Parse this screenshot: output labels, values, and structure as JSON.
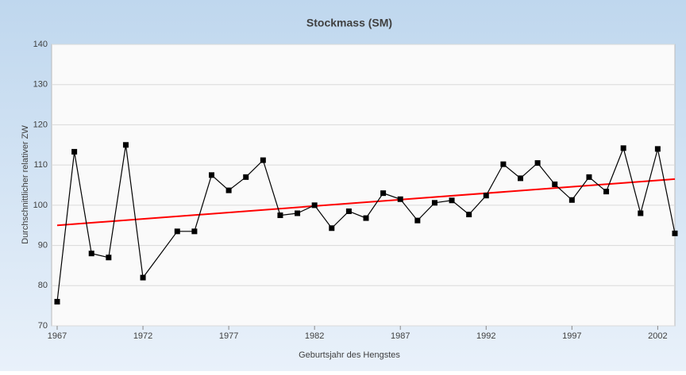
{
  "chart_data": {
    "type": "line",
    "title": "Stockmass (SM)",
    "xlabel": "Geburtsjahr des Hengstes",
    "ylabel": "Durchschnittlicher relativer ZW",
    "x": [
      1967,
      1968,
      1969,
      1970,
      1971,
      1972,
      1974,
      1975,
      1976,
      1977,
      1978,
      1979,
      1980,
      1981,
      1982,
      1983,
      1984,
      1985,
      1986,
      1987,
      1988,
      1989,
      1990,
      1991,
      1992,
      1993,
      1994,
      1995,
      1996,
      1997,
      1998,
      1999,
      2000,
      2001,
      2002,
      2003
    ],
    "series": [
      {
        "color": "#000000",
        "values": [
          76,
          113.3,
          88,
          87,
          115,
          82,
          93.5,
          93.5,
          107.5,
          103.7,
          107,
          111.2,
          97.5,
          98,
          100,
          94.3,
          98.5,
          96.8,
          103,
          101.5,
          96.2,
          100.6,
          101.2,
          97.7,
          102.4,
          110.2,
          106.7,
          110.5,
          105.2,
          101.3,
          107,
          103.4,
          114.2,
          98,
          114,
          93
        ]
      }
    ],
    "trendline": {
      "color": "#ff0000",
      "x": [
        1967,
        2003
      ],
      "values": [
        95,
        106.5
      ]
    },
    "xlim": [
      1967,
      2003
    ],
    "xticks": [
      1967,
      1972,
      1977,
      1982,
      1987,
      1992,
      1997,
      2002
    ],
    "ylim": [
      70,
      140
    ],
    "yticks": [
      70,
      80,
      90,
      100,
      110,
      120,
      130,
      140
    ],
    "grid": true
  }
}
